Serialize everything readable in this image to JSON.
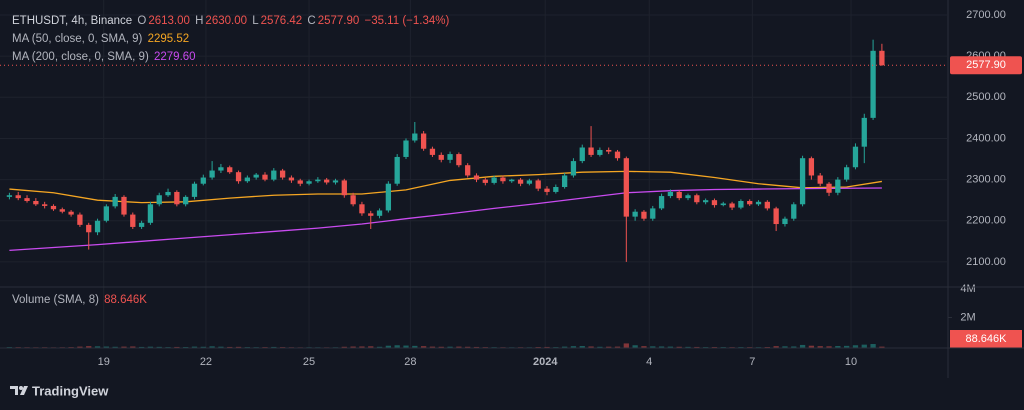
{
  "chart_data": {
    "type": "candlestick",
    "title": "ETHUSDT, 4h, Binance",
    "ohlc_legend": [
      {
        "label": "O",
        "value": "2613.00"
      },
      {
        "label": "H",
        "value": "2630.00"
      },
      {
        "label": "L",
        "value": "2576.42"
      },
      {
        "label": "C",
        "value": "2577.90"
      }
    ],
    "change": "−35.11 (−1.34%)",
    "up_color": "#26a69a",
    "down_color": "#ef5350",
    "open": [
      2258,
      2262,
      2255,
      2248,
      2240,
      2236,
      2228,
      2222,
      2215,
      2190,
      2172,
      2200,
      2235,
      2258,
      2215,
      2185,
      2195,
      2240,
      2262,
      2270,
      2240,
      2258,
      2290,
      2305,
      2322,
      2330,
      2318,
      2296,
      2305,
      2312,
      2300,
      2322,
      2305,
      2298,
      2290,
      2296,
      2300,
      2293,
      2298,
      2262,
      2240,
      2218,
      2212,
      2225,
      2290,
      2355,
      2395,
      2412,
      2375,
      2360,
      2348,
      2362,
      2335,
      2310,
      2300,
      2292,
      2305,
      2296,
      2300,
      2290,
      2298,
      2278,
      2270,
      2282,
      2310,
      2345,
      2378,
      2360,
      2372,
      2368,
      2352,
      2210,
      2222,
      2205,
      2230,
      2260,
      2270,
      2255,
      2262,
      2245,
      2250,
      2238,
      2242,
      2232,
      2248,
      2240,
      2246,
      2230,
      2192,
      2205,
      2240,
      2352,
      2310,
      2290,
      2268,
      2300,
      2330,
      2380,
      2450,
      2613
    ],
    "high": [
      2268,
      2270,
      2262,
      2255,
      2246,
      2240,
      2232,
      2226,
      2220,
      2195,
      2205,
      2240,
      2265,
      2262,
      2220,
      2200,
      2246,
      2268,
      2278,
      2274,
      2262,
      2295,
      2312,
      2345,
      2338,
      2334,
      2322,
      2310,
      2316,
      2318,
      2328,
      2326,
      2310,
      2302,
      2300,
      2306,
      2304,
      2302,
      2302,
      2268,
      2246,
      2224,
      2230,
      2296,
      2362,
      2400,
      2440,
      2418,
      2380,
      2366,
      2368,
      2366,
      2340,
      2315,
      2304,
      2310,
      2310,
      2302,
      2304,
      2302,
      2302,
      2284,
      2288,
      2316,
      2352,
      2385,
      2430,
      2378,
      2378,
      2372,
      2356,
      2228,
      2226,
      2236,
      2266,
      2276,
      2274,
      2266,
      2266,
      2254,
      2254,
      2246,
      2246,
      2252,
      2252,
      2250,
      2250,
      2234,
      2210,
      2245,
      2358,
      2356,
      2316,
      2294,
      2306,
      2336,
      2388,
      2460,
      2640,
      2630
    ],
    "low": [
      2252,
      2250,
      2244,
      2236,
      2230,
      2224,
      2218,
      2210,
      2185,
      2130,
      2165,
      2196,
      2230,
      2210,
      2180,
      2180,
      2190,
      2235,
      2258,
      2235,
      2235,
      2252,
      2286,
      2300,
      2316,
      2314,
      2290,
      2292,
      2300,
      2296,
      2296,
      2300,
      2292,
      2284,
      2286,
      2292,
      2288,
      2288,
      2256,
      2235,
      2212,
      2180,
      2206,
      2220,
      2285,
      2350,
      2390,
      2370,
      2355,
      2342,
      2340,
      2330,
      2305,
      2294,
      2286,
      2288,
      2290,
      2292,
      2284,
      2286,
      2272,
      2262,
      2266,
      2278,
      2305,
      2340,
      2355,
      2356,
      2362,
      2346,
      2100,
      2200,
      2200,
      2200,
      2226,
      2255,
      2250,
      2250,
      2240,
      2240,
      2232,
      2235,
      2226,
      2228,
      2236,
      2236,
      2225,
      2175,
      2186,
      2200,
      2235,
      2300,
      2284,
      2260,
      2262,
      2295,
      2325,
      2340,
      2445,
      2576.42
    ],
    "close": [
      2262,
      2255,
      2248,
      2240,
      2236,
      2228,
      2222,
      2215,
      2190,
      2172,
      2200,
      2235,
      2258,
      2215,
      2185,
      2195,
      2240,
      2262,
      2270,
      2240,
      2258,
      2290,
      2305,
      2322,
      2330,
      2318,
      2296,
      2305,
      2312,
      2300,
      2322,
      2305,
      2298,
      2290,
      2296,
      2300,
      2293,
      2298,
      2262,
      2240,
      2218,
      2212,
      2225,
      2290,
      2355,
      2395,
      2412,
      2375,
      2360,
      2348,
      2362,
      2335,
      2310,
      2300,
      2292,
      2305,
      2296,
      2300,
      2290,
      2298,
      2278,
      2270,
      2282,
      2310,
      2345,
      2378,
      2360,
      2372,
      2368,
      2352,
      2210,
      2222,
      2205,
      2230,
      2260,
      2270,
      2255,
      2262,
      2245,
      2250,
      2238,
      2242,
      2232,
      2248,
      2240,
      2246,
      2230,
      2192,
      2205,
      2240,
      2352,
      2310,
      2290,
      2268,
      2300,
      2330,
      2380,
      2450,
      2613,
      2577.9
    ],
    "xlim": [
      -0.5,
      106.5
    ],
    "xticks": [
      {
        "value": 10.7,
        "label": "19"
      },
      {
        "value": 22.3,
        "label": "22"
      },
      {
        "value": 34.0,
        "label": "25"
      },
      {
        "value": 45.5,
        "label": "28"
      },
      {
        "value": 60.8,
        "label": "2024"
      },
      {
        "value": 72.6,
        "label": "4"
      },
      {
        "value": 84.3,
        "label": "7"
      },
      {
        "value": 95.5,
        "label": "10"
      }
    ],
    "ylim": [
      2039,
      2717
    ],
    "yticks": [
      {
        "value": 2100,
        "label": "2100.00"
      },
      {
        "value": 2200,
        "label": "2200.00"
      },
      {
        "value": 2300,
        "label": "2300.00"
      },
      {
        "value": 2400,
        "label": "2400.00"
      },
      {
        "value": 2500,
        "label": "2500.00"
      },
      {
        "value": 2600,
        "label": "2600.00"
      },
      {
        "value": 2700,
        "label": "2700.00"
      }
    ],
    "grid": true,
    "last_price": {
      "value": 2577.9,
      "label": "2577.90"
    },
    "indicators": [
      {
        "name": "MA (50, close, 0, SMA, 9)",
        "value_label": "2295.52",
        "color": "#f5a623",
        "x": [
          0,
          5,
          10,
          15,
          20,
          25,
          30,
          35,
          40,
          45,
          50,
          55,
          60,
          65,
          70,
          75,
          80,
          85,
          90,
          95,
          99
        ],
        "values": [
          2277,
          2268,
          2250,
          2244,
          2246,
          2255,
          2262,
          2265,
          2265,
          2275,
          2298,
          2308,
          2312,
          2318,
          2320,
          2318,
          2305,
          2290,
          2280,
          2282,
          2295.52
        ]
      },
      {
        "name": "MA (200, close, 0, SMA, 9)",
        "value_label": "2279.60",
        "color": "#c94bf0",
        "x": [
          0,
          5,
          10,
          15,
          20,
          25,
          30,
          35,
          40,
          45,
          50,
          55,
          60,
          65,
          70,
          75,
          80,
          85,
          90,
          95,
          99
        ],
        "values": [
          2128,
          2135,
          2142,
          2150,
          2158,
          2166,
          2174,
          2182,
          2192,
          2205,
          2217,
          2230,
          2242,
          2255,
          2268,
          2273,
          2276,
          2277,
          2278,
          2279,
          2279.6
        ]
      }
    ],
    "volume": {
      "name": "Volume (SMA, 8)",
      "value_label": "88.646K",
      "ylim": [
        0,
        4000000
      ],
      "yticks": [
        {
          "value": 4000000,
          "label": "4M"
        },
        {
          "value": 2000000,
          "label": "2M"
        }
      ],
      "values": [
        60000,
        55000,
        50000,
        48000,
        52000,
        45000,
        50000,
        60000,
        90000,
        120000,
        110000,
        95000,
        80000,
        90000,
        100000,
        70000,
        85000,
        75000,
        60000,
        70000,
        65000,
        90000,
        80000,
        110000,
        85000,
        70000,
        75000,
        60000,
        55000,
        60000,
        70000,
        60000,
        50000,
        45000,
        50000,
        48000,
        45000,
        50000,
        80000,
        95000,
        100000,
        110000,
        80000,
        150000,
        180000,
        160000,
        140000,
        120000,
        90000,
        80000,
        85000,
        90000,
        80000,
        70000,
        60000,
        55000,
        50000,
        48000,
        52000,
        50000,
        65000,
        70000,
        60000,
        90000,
        120000,
        130000,
        100000,
        80000,
        85000,
        90000,
        300000,
        180000,
        120000,
        110000,
        100000,
        90000,
        80000,
        75000,
        70000,
        60000,
        65000,
        60000,
        55000,
        60000,
        58000,
        55000,
        65000,
        120000,
        110000,
        100000,
        200000,
        150000,
        120000,
        110000,
        130000,
        140000,
        180000,
        220000,
        260000,
        88646
      ]
    }
  },
  "footer": {
    "brand": "TradingView"
  }
}
